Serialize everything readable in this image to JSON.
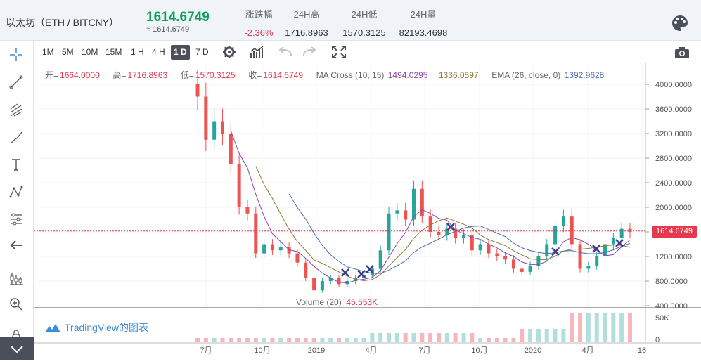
{
  "header": {
    "pair": "以太坊（ETH / BITCNY）",
    "price": "1614.6749",
    "price_approx": "≈ 1614.6749",
    "stats": [
      {
        "label": "涨跌幅",
        "value": "-2.36%"
      },
      {
        "label": "24H高",
        "value": "1716.8963"
      },
      {
        "label": "24H低",
        "value": "1570.3125"
      },
      {
        "label": "24H量",
        "value": "82193.4698"
      }
    ],
    "palette_icon": "palette-icon"
  },
  "toolbar": {
    "timeframes": [
      "1M",
      "5M",
      "10M",
      "15M",
      "1 H",
      "4 H",
      "1 D",
      "7 D"
    ],
    "active_timeframe": "1 D",
    "icons": [
      "settings-icon",
      "indicators-icon",
      "undo-icon",
      "redo-icon",
      "fullscreen-icon",
      "camera-icon"
    ]
  },
  "left_tools": [
    "crosshair-icon",
    "trend-line-icon",
    "fib-icon",
    "brush-icon",
    "text-icon",
    "pattern-icon",
    "measure-icon",
    "back-arrow-icon",
    "long-position-icon",
    "zoom-icon",
    "lock-icon"
  ],
  "legend": {
    "open_label": "开=",
    "open": "1664.0000",
    "high_label": "高=",
    "high": "1716.8963",
    "low_label": "低=",
    "low": "1570.3125",
    "close_label": "收=",
    "close": "1614.6749",
    "ma_label": "MA Cross (10, 15)",
    "ma1": "1494.0295",
    "ma2": "1336.0597",
    "ema_label": "EMA (26, close, 0)",
    "ema": "1392.9628"
  },
  "volume_legend": {
    "label": "Volume (20)",
    "value": "45.553K"
  },
  "branding": "TradingView的图表",
  "current_price_tag": "1614.6749",
  "colors": {
    "up": "#26a69a",
    "down": "#ef5350",
    "accent": "#4a4f5a",
    "ma1": "#8e44ad",
    "ma2": "#8a7a35",
    "ema": "#4a6fb0"
  },
  "chart_data": {
    "type": "candlestick",
    "y_axis_ticks": [
      "4000.0000",
      "3600.0000",
      "3200.0000",
      "2800.0000",
      "2400.0000",
      "2000.0000",
      "1600.0000",
      "1200.0000",
      "800.0000",
      "400.0000"
    ],
    "ylim": [
      400,
      4000
    ],
    "volume_ticks": [
      "50K",
      "0"
    ],
    "x_ticks": [
      "7月",
      "10月",
      "2019",
      "4月",
      "7月",
      "10月",
      "2020",
      "4月",
      "16"
    ],
    "close_series": [
      3800,
      3100,
      3400,
      3200,
      2700,
      2000,
      1900,
      1250,
      1400,
      1300,
      1350,
      1250,
      1100,
      850,
      650,
      800,
      850,
      750,
      800,
      850,
      900,
      1000,
      1300,
      1900,
      1950,
      1800,
      2300,
      1850,
      1600,
      1550,
      1650,
      1500,
      1550,
      1300,
      1400,
      1250,
      1200,
      1150,
      1000,
      950,
      1050,
      1200,
      1400,
      1700,
      1850,
      1400,
      1000,
      1050,
      1200,
      1400,
      1500,
      1650,
      1600
    ]
  }
}
